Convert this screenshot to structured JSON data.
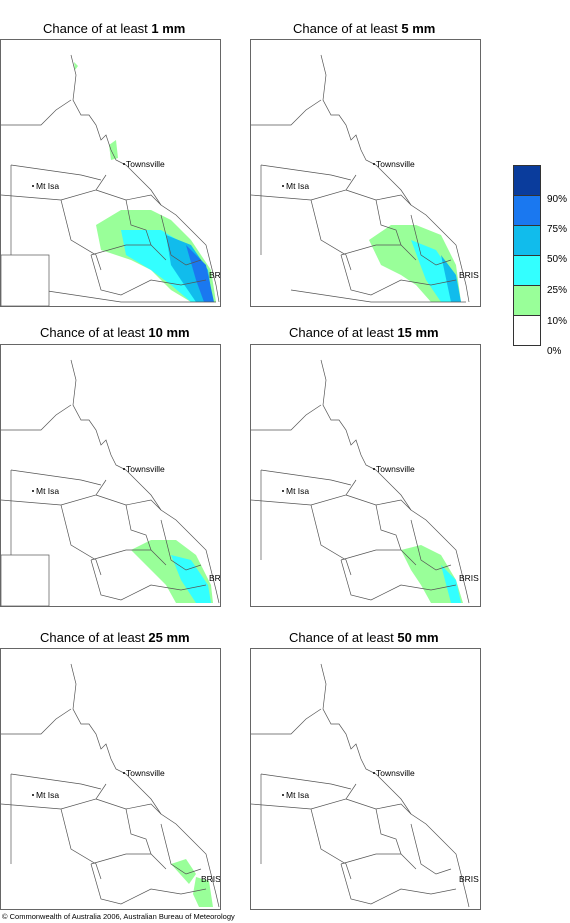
{
  "panels": [
    {
      "title_prefix": "Chance of at least ",
      "amount": "1 mm"
    },
    {
      "title_prefix": "Chance of at least ",
      "amount": "5 mm"
    },
    {
      "title_prefix": "Chance of at least ",
      "amount": "10 mm"
    },
    {
      "title_prefix": "Chance of at least ",
      "amount": "15 mm"
    },
    {
      "title_prefix": "Chance of at least ",
      "amount": "25 mm"
    },
    {
      "title_prefix": "Chance of at least ",
      "amount": "50 mm"
    }
  ],
  "places": {
    "townsville": "Townsville",
    "mtisa": "Mt Isa",
    "bris": "BRIS"
  },
  "legend": {
    "labels": [
      "90%",
      "75%",
      "50%",
      "25%",
      "10%",
      "0%"
    ],
    "colors": [
      "#0a3c9c",
      "#1a78f0",
      "#11bcec",
      "#33ffff",
      "#99ff99",
      "#ffffff"
    ]
  },
  "copyright": "© Commonwealth of Australia 2006, Australian Bureau of Meteorology"
}
